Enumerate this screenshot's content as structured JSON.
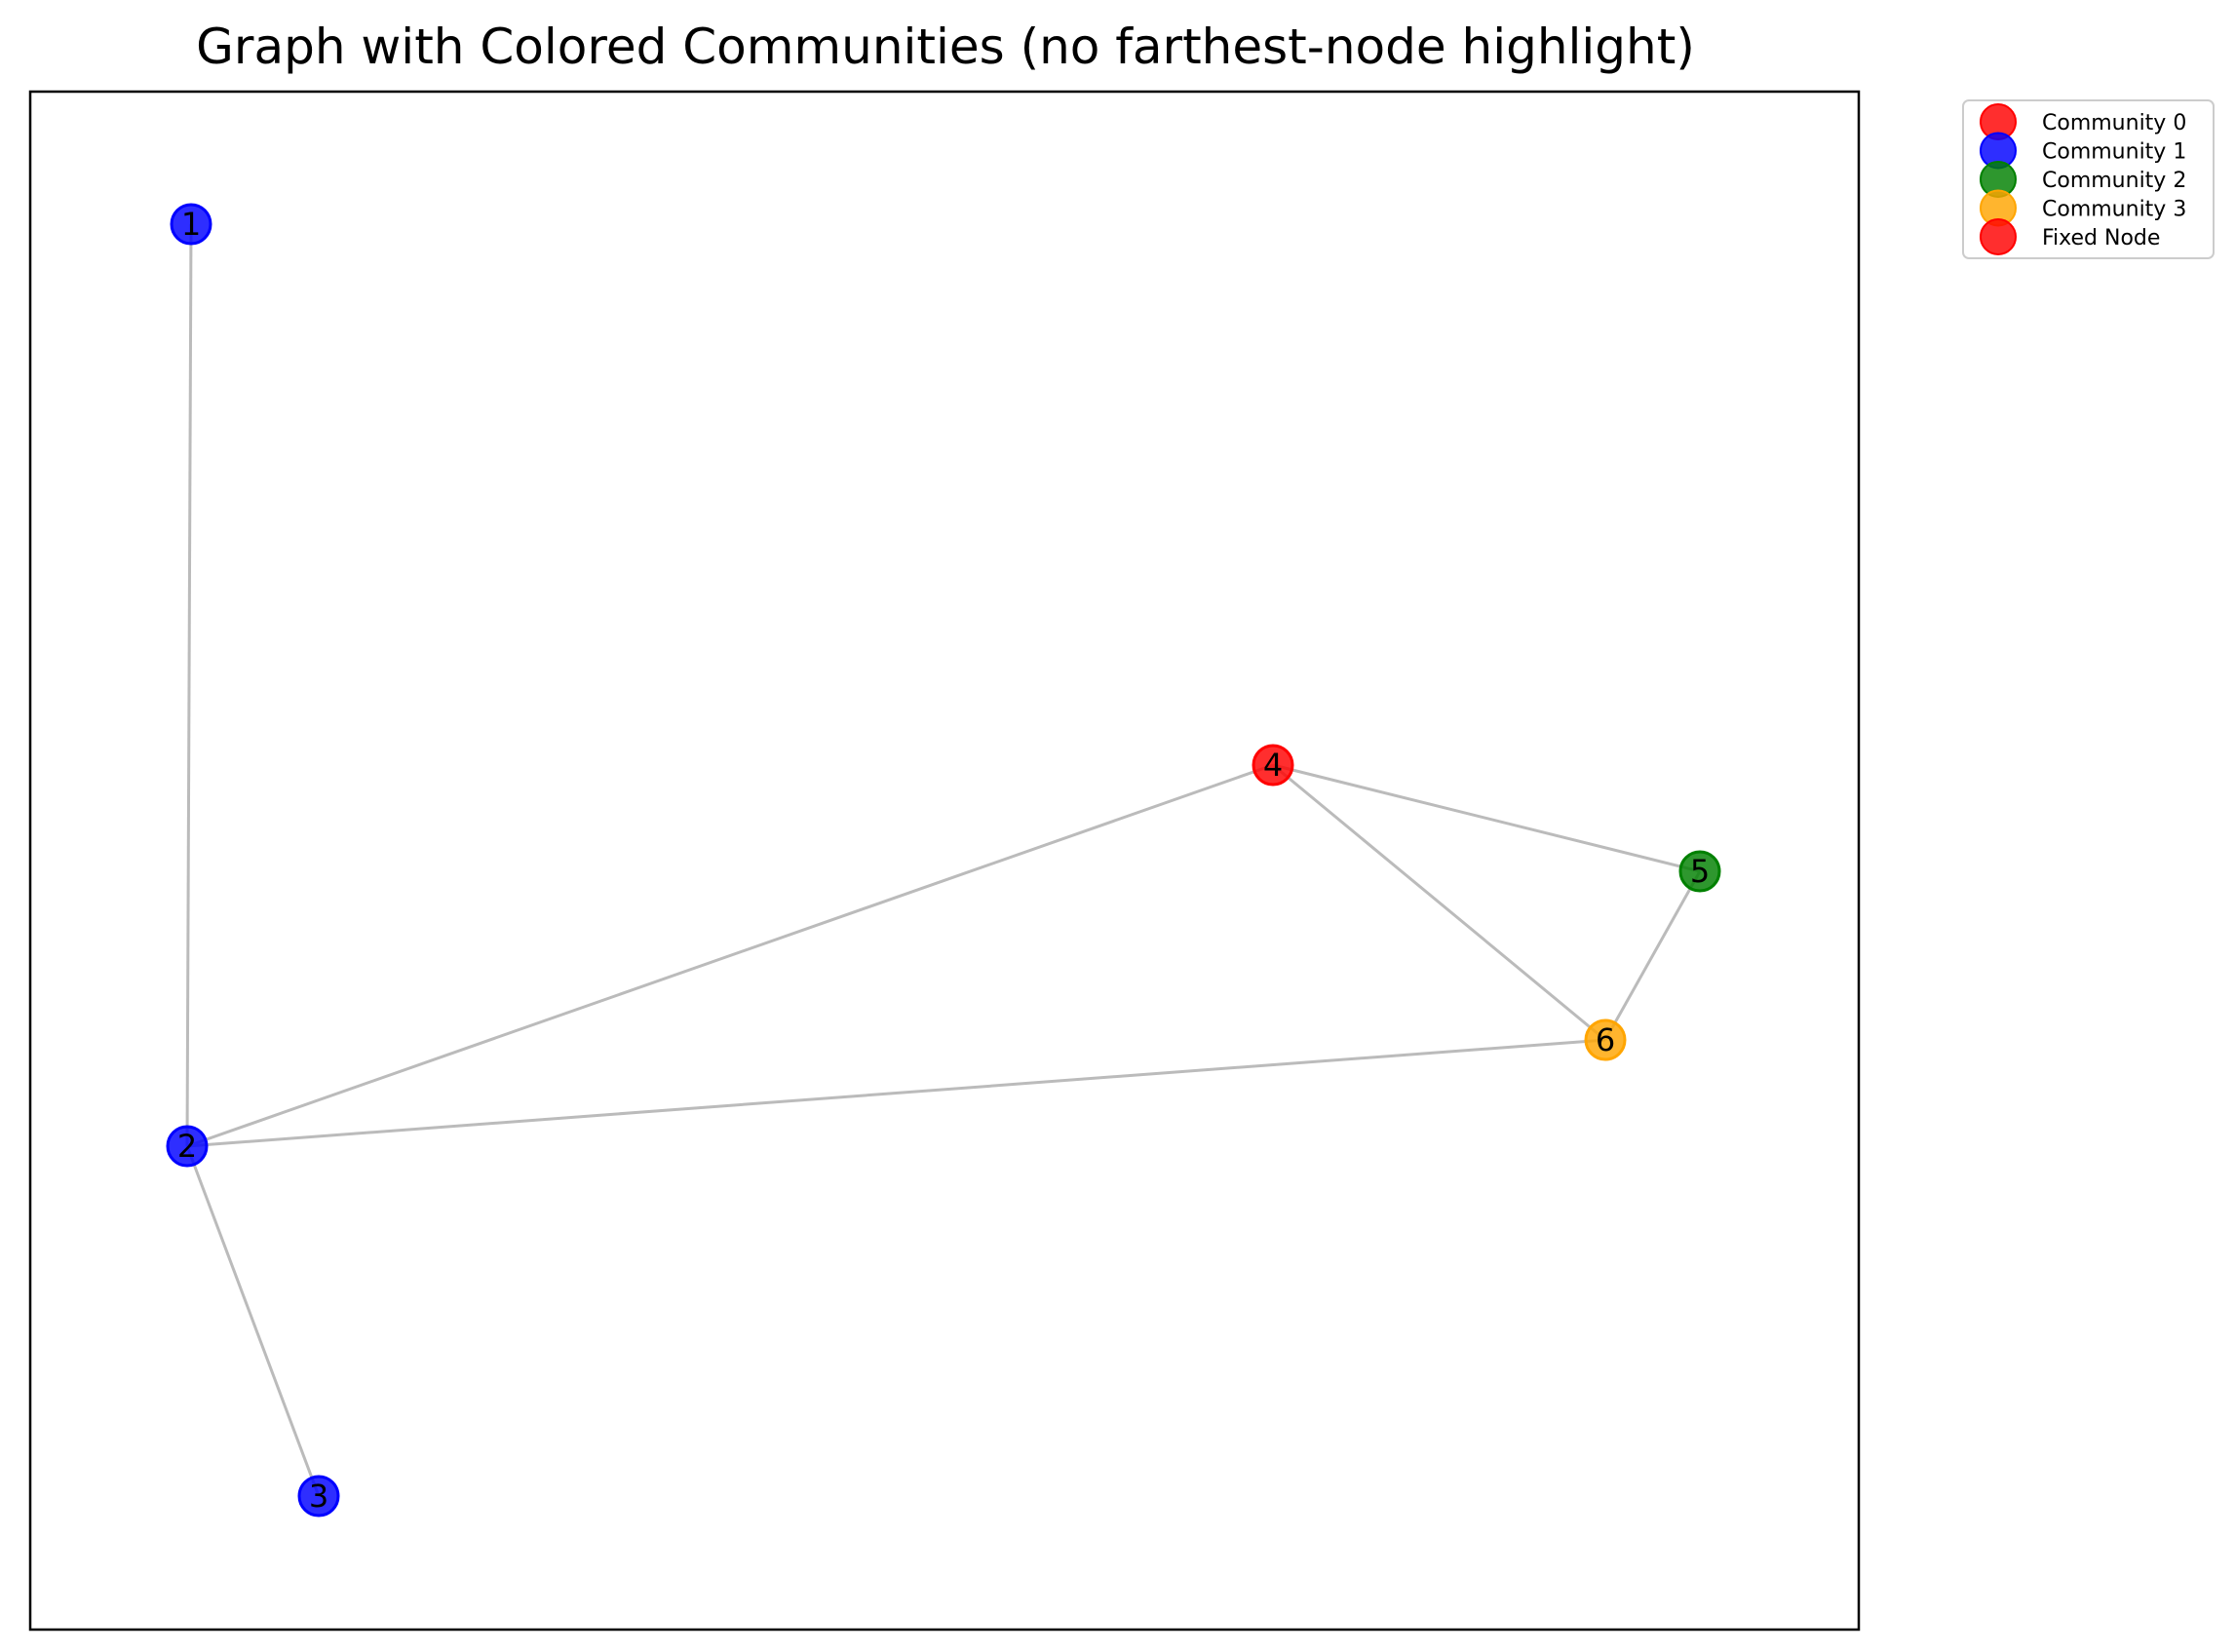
{
  "title": "Graph with Colored Communities (no farthest-node highlight)",
  "chart_data": {
    "type": "network",
    "title": "Graph with Colored Communities (no farthest-node highlight)",
    "nodes": [
      {
        "id": "1",
        "label": "1",
        "community": "Community 1",
        "color": "#0000ff"
      },
      {
        "id": "2",
        "label": "2",
        "community": "Community 1",
        "color": "#0000ff"
      },
      {
        "id": "3",
        "label": "3",
        "community": "Community 1",
        "color": "#0000ff"
      },
      {
        "id": "4",
        "label": "4",
        "community": "Fixed Node",
        "color": "#ff0000"
      },
      {
        "id": "5",
        "label": "5",
        "community": "Community 2",
        "color": "#008000"
      },
      {
        "id": "6",
        "label": "6",
        "community": "Community 3",
        "color": "#ffa500"
      }
    ],
    "edges": [
      [
        "1",
        "2"
      ],
      [
        "2",
        "3"
      ],
      [
        "2",
        "4"
      ],
      [
        "2",
        "6"
      ],
      [
        "4",
        "5"
      ],
      [
        "4",
        "6"
      ],
      [
        "5",
        "6"
      ]
    ],
    "legend": {
      "placement": "outside-top-right",
      "entries": [
        {
          "label": "Community 0",
          "color": "#ff0000"
        },
        {
          "label": "Community 1",
          "color": "#0000ff"
        },
        {
          "label": "Community 2",
          "color": "#008000"
        },
        {
          "label": "Community 3",
          "color": "#ffa500"
        },
        {
          "label": "Fixed Node",
          "color": "#ff0000"
        }
      ]
    },
    "edge_color": "#bbbbbb",
    "grid": false
  }
}
